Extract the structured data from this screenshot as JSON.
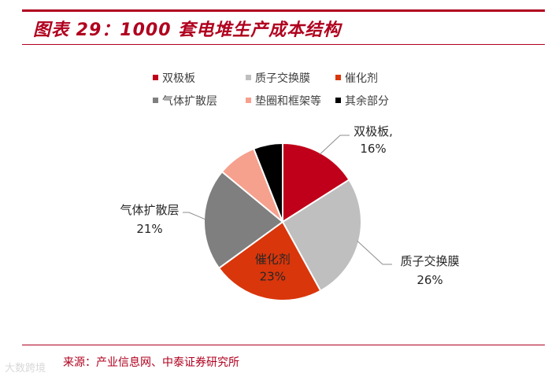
{
  "header": {
    "title": "图表 29：1000 套电堆生产成本结构"
  },
  "footer": {
    "source": "来源：产业信息网、中泰证券研究所",
    "watermark": "大数跨境"
  },
  "chart_data": {
    "type": "pie",
    "title": "图表 29：1000 套电堆生产成本结构",
    "legend_position": "top",
    "slices": [
      {
        "label": "双极板",
        "value": 16,
        "value_text": "16%",
        "color": "#c0001a"
      },
      {
        "label": "质子交换膜",
        "value": 26,
        "value_text": "26%",
        "color": "#bfbfbf"
      },
      {
        "label": "催化剂",
        "value": 23,
        "value_text": "23%",
        "color": "#d9360b"
      },
      {
        "label": "气体扩散层",
        "value": 21,
        "value_text": "21%",
        "color": "#7f7f7f"
      },
      {
        "label": "垫圈和框架等",
        "value": 8,
        "value_text": "",
        "color": "#f6a08e"
      },
      {
        "label": "其余部分",
        "value": 6,
        "value_text": "",
        "color": "#000000"
      }
    ],
    "legend": [
      "双极板",
      "质子交换膜",
      "催化剂",
      "气体扩散层",
      "垫圈和框架等",
      "其余部分"
    ]
  }
}
